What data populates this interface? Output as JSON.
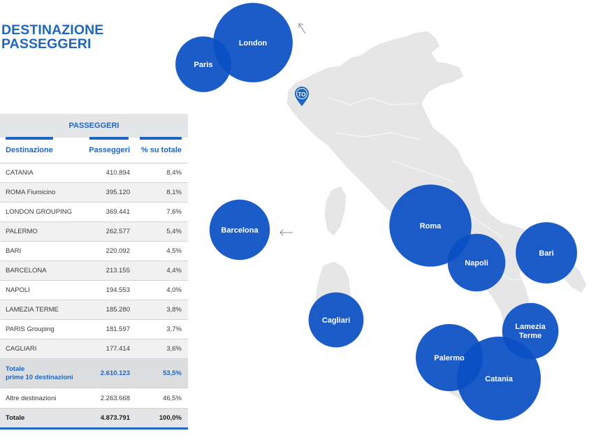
{
  "title_line1": "DESTINAZIONE",
  "title_line2": "PASSEGGERI",
  "table": {
    "group_header": "PASSEGGERI",
    "col_destination": "Destinazione",
    "col_passengers": "Passeggeri",
    "col_share": "% su totale",
    "rows": [
      {
        "name": "CATANIA",
        "passengers": "410.894",
        "share": "8,4%"
      },
      {
        "name": "ROMA Fiumicino",
        "passengers": "395.120",
        "share": "8,1%"
      },
      {
        "name": "LONDON GROUPING",
        "passengers": "369.441",
        "share": "7,6%"
      },
      {
        "name": "PALERMO",
        "passengers": "262.577",
        "share": "5,4%"
      },
      {
        "name": "BARI",
        "passengers": "220.092",
        "share": "4,5%"
      },
      {
        "name": "BARCELONA",
        "passengers": "213.155",
        "share": "4,4%"
      },
      {
        "name": "NAPOLI",
        "passengers": "194.553",
        "share": "4,0%"
      },
      {
        "name": "LAMEZIA TERME",
        "passengers": "185.280",
        "share": "3,8%"
      },
      {
        "name": "PARIS Grouping",
        "passengers": "181.597",
        "share": "3,7%"
      },
      {
        "name": "CAGLIARI",
        "passengers": "177.414",
        "share": "3,6%"
      }
    ],
    "subtotal_line1": "Totale",
    "subtotal_line2": "prime 10 destinazioni",
    "subtotal_passengers": "2.610.123",
    "subtotal_share": "53,5%",
    "other_label": "Altre destinazioni",
    "other_passengers": "2.263.668",
    "other_share": "46,5%",
    "total_label": "Totale",
    "total_passengers": "4.873.791",
    "total_share": "100,0%"
  },
  "origin_marker": "TO",
  "chart_data": {
    "type": "bubble-map",
    "title": "DESTINAZIONE PASSEGGERI",
    "series": [
      {
        "label": "London",
        "value": 369441
      },
      {
        "label": "Paris",
        "value": 181597
      },
      {
        "label": "Barcelona",
        "value": 213155
      },
      {
        "label": "Roma",
        "value": 395120
      },
      {
        "label": "Napoli",
        "value": 194553
      },
      {
        "label": "Bari",
        "value": 220092
      },
      {
        "label": "Cagliari",
        "value": 177414
      },
      {
        "label": "Lamezia Terme",
        "value": 185280
      },
      {
        "label": "Palermo",
        "value": 262577
      },
      {
        "label": "Catania",
        "value": 410894
      }
    ]
  },
  "colors": {
    "accent": "#1f66c1",
    "bubble": "#0a50c4",
    "land": "#e6e6e6"
  }
}
